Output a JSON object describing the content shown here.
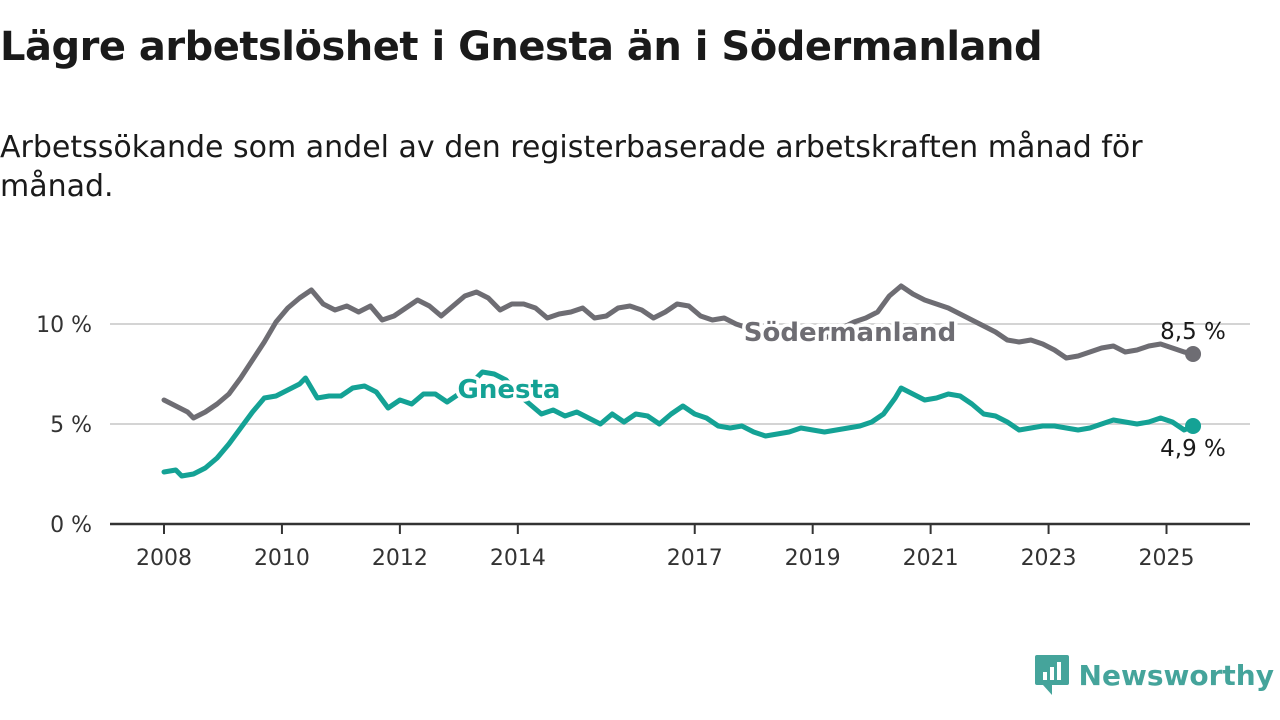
{
  "title": "Lägre arbetslöshet i Gnesta än i Södermanland",
  "subtitle": "Arbetssökande som andel av den registerbaserade arbetskraften månad för månad.",
  "brand": {
    "name": "Newsworthy",
    "icon": "newsworthy-logo-icon",
    "color": "#45a49b"
  },
  "colors": {
    "gnesta": "#14a295",
    "sodermanland": "#6e6d73",
    "grid": "#d4d4d4",
    "axis": "#333333"
  },
  "chart_data": {
    "type": "line",
    "title": "Lägre arbetslöshet i Gnesta än i Södermanland",
    "subtitle": "Arbetssökande som andel av den registerbaserade arbetskraften månad för månad.",
    "x_tick_labels": [
      "2008",
      "2010",
      "2012",
      "2014",
      "2017",
      "2019",
      "2021",
      "2023",
      "2025"
    ],
    "x_tick_values": [
      2008,
      2010,
      2012,
      2014,
      2017,
      2019,
      2021,
      2023,
      2025
    ],
    "xlim": [
      2008,
      2025.5
    ],
    "y_ticks": [
      0,
      5,
      10
    ],
    "y_tick_labels": [
      "0 %",
      "5 %",
      "10 %"
    ],
    "ylim": [
      0,
      12
    ],
    "grid": true,
    "series": [
      {
        "name": "Södermanland",
        "color": "#6e6d73",
        "end_label": "8,5 %",
        "points": [
          [
            2008.0,
            6.2
          ],
          [
            2008.2,
            5.9
          ],
          [
            2008.4,
            5.6
          ],
          [
            2008.5,
            5.3
          ],
          [
            2008.7,
            5.6
          ],
          [
            2008.9,
            6.0
          ],
          [
            2009.1,
            6.5
          ],
          [
            2009.3,
            7.3
          ],
          [
            2009.5,
            8.2
          ],
          [
            2009.7,
            9.1
          ],
          [
            2009.9,
            10.1
          ],
          [
            2010.1,
            10.8
          ],
          [
            2010.3,
            11.3
          ],
          [
            2010.5,
            11.7
          ],
          [
            2010.7,
            11.0
          ],
          [
            2010.9,
            10.7
          ],
          [
            2011.1,
            10.9
          ],
          [
            2011.3,
            10.6
          ],
          [
            2011.5,
            10.9
          ],
          [
            2011.7,
            10.2
          ],
          [
            2011.9,
            10.4
          ],
          [
            2012.1,
            10.8
          ],
          [
            2012.3,
            11.2
          ],
          [
            2012.5,
            10.9
          ],
          [
            2012.7,
            10.4
          ],
          [
            2012.9,
            10.9
          ],
          [
            2013.1,
            11.4
          ],
          [
            2013.3,
            11.6
          ],
          [
            2013.5,
            11.3
          ],
          [
            2013.7,
            10.7
          ],
          [
            2013.9,
            11.0
          ],
          [
            2014.1,
            11.0
          ],
          [
            2014.3,
            10.8
          ],
          [
            2014.5,
            10.3
          ],
          [
            2014.7,
            10.5
          ],
          [
            2014.9,
            10.6
          ],
          [
            2015.1,
            10.8
          ],
          [
            2015.3,
            10.3
          ],
          [
            2015.5,
            10.4
          ],
          [
            2015.7,
            10.8
          ],
          [
            2015.9,
            10.9
          ],
          [
            2016.1,
            10.7
          ],
          [
            2016.3,
            10.3
          ],
          [
            2016.5,
            10.6
          ],
          [
            2016.7,
            11.0
          ],
          [
            2016.9,
            10.9
          ],
          [
            2017.1,
            10.4
          ],
          [
            2017.3,
            10.2
          ],
          [
            2017.5,
            10.3
          ],
          [
            2017.7,
            10.0
          ],
          [
            2017.9,
            9.8
          ],
          [
            2018.1,
            9.6
          ],
          [
            2018.3,
            9.7
          ],
          [
            2018.5,
            9.5
          ],
          [
            2018.7,
            9.3
          ],
          [
            2018.9,
            9.4
          ],
          [
            2019.1,
            9.2
          ],
          [
            2019.3,
            9.4
          ],
          [
            2019.5,
            9.8
          ],
          [
            2019.7,
            10.1
          ],
          [
            2019.9,
            10.3
          ],
          [
            2020.1,
            10.6
          ],
          [
            2020.3,
            11.4
          ],
          [
            2020.5,
            11.9
          ],
          [
            2020.7,
            11.5
          ],
          [
            2020.9,
            11.2
          ],
          [
            2021.1,
            11.0
          ],
          [
            2021.3,
            10.8
          ],
          [
            2021.5,
            10.5
          ],
          [
            2021.7,
            10.2
          ],
          [
            2021.9,
            9.9
          ],
          [
            2022.1,
            9.6
          ],
          [
            2022.3,
            9.2
          ],
          [
            2022.5,
            9.1
          ],
          [
            2022.7,
            9.2
          ],
          [
            2022.9,
            9.0
          ],
          [
            2023.1,
            8.7
          ],
          [
            2023.3,
            8.3
          ],
          [
            2023.5,
            8.4
          ],
          [
            2023.7,
            8.6
          ],
          [
            2023.9,
            8.8
          ],
          [
            2024.1,
            8.9
          ],
          [
            2024.3,
            8.6
          ],
          [
            2024.5,
            8.7
          ],
          [
            2024.7,
            8.9
          ],
          [
            2024.9,
            9.0
          ],
          [
            2025.1,
            8.8
          ],
          [
            2025.3,
            8.6
          ],
          [
            2025.45,
            8.5
          ]
        ]
      },
      {
        "name": "Gnesta",
        "color": "#14a295",
        "end_label": "4,9 %",
        "points": [
          [
            2008.0,
            2.6
          ],
          [
            2008.2,
            2.7
          ],
          [
            2008.3,
            2.4
          ],
          [
            2008.5,
            2.5
          ],
          [
            2008.7,
            2.8
          ],
          [
            2008.9,
            3.3
          ],
          [
            2009.1,
            4.0
          ],
          [
            2009.3,
            4.8
          ],
          [
            2009.5,
            5.6
          ],
          [
            2009.7,
            6.3
          ],
          [
            2009.9,
            6.4
          ],
          [
            2010.1,
            6.7
          ],
          [
            2010.3,
            7.0
          ],
          [
            2010.4,
            7.3
          ],
          [
            2010.6,
            6.3
          ],
          [
            2010.8,
            6.4
          ],
          [
            2011.0,
            6.4
          ],
          [
            2011.2,
            6.8
          ],
          [
            2011.4,
            6.9
          ],
          [
            2011.6,
            6.6
          ],
          [
            2011.8,
            5.8
          ],
          [
            2012.0,
            6.2
          ],
          [
            2012.2,
            6.0
          ],
          [
            2012.4,
            6.5
          ],
          [
            2012.6,
            6.5
          ],
          [
            2012.8,
            6.1
          ],
          [
            2013.0,
            6.5
          ],
          [
            2013.2,
            7.0
          ],
          [
            2013.4,
            7.6
          ],
          [
            2013.6,
            7.5
          ],
          [
            2013.8,
            7.2
          ],
          [
            2014.0,
            6.5
          ],
          [
            2014.2,
            6.0
          ],
          [
            2014.4,
            5.5
          ],
          [
            2014.6,
            5.7
          ],
          [
            2014.8,
            5.4
          ],
          [
            2015.0,
            5.6
          ],
          [
            2015.2,
            5.3
          ],
          [
            2015.4,
            5.0
          ],
          [
            2015.6,
            5.5
          ],
          [
            2015.8,
            5.1
          ],
          [
            2016.0,
            5.5
          ],
          [
            2016.2,
            5.4
          ],
          [
            2016.4,
            5.0
          ],
          [
            2016.6,
            5.5
          ],
          [
            2016.8,
            5.9
          ],
          [
            2017.0,
            5.5
          ],
          [
            2017.2,
            5.3
          ],
          [
            2017.4,
            4.9
          ],
          [
            2017.6,
            4.8
          ],
          [
            2017.8,
            4.9
          ],
          [
            2018.0,
            4.6
          ],
          [
            2018.2,
            4.4
          ],
          [
            2018.4,
            4.5
          ],
          [
            2018.6,
            4.6
          ],
          [
            2018.8,
            4.8
          ],
          [
            2019.0,
            4.7
          ],
          [
            2019.2,
            4.6
          ],
          [
            2019.4,
            4.7
          ],
          [
            2019.6,
            4.8
          ],
          [
            2019.8,
            4.9
          ],
          [
            2020.0,
            5.1
          ],
          [
            2020.2,
            5.5
          ],
          [
            2020.4,
            6.3
          ],
          [
            2020.5,
            6.8
          ],
          [
            2020.7,
            6.5
          ],
          [
            2020.9,
            6.2
          ],
          [
            2021.1,
            6.3
          ],
          [
            2021.3,
            6.5
          ],
          [
            2021.5,
            6.4
          ],
          [
            2021.7,
            6.0
          ],
          [
            2021.9,
            5.5
          ],
          [
            2022.1,
            5.4
          ],
          [
            2022.3,
            5.1
          ],
          [
            2022.5,
            4.7
          ],
          [
            2022.7,
            4.8
          ],
          [
            2022.9,
            4.9
          ],
          [
            2023.1,
            4.9
          ],
          [
            2023.3,
            4.8
          ],
          [
            2023.5,
            4.7
          ],
          [
            2023.7,
            4.8
          ],
          [
            2023.9,
            5.0
          ],
          [
            2024.1,
            5.2
          ],
          [
            2024.3,
            5.1
          ],
          [
            2024.5,
            5.0
          ],
          [
            2024.7,
            5.1
          ],
          [
            2024.9,
            5.3
          ],
          [
            2025.1,
            5.1
          ],
          [
            2025.3,
            4.7
          ],
          [
            2025.45,
            4.9
          ]
        ]
      }
    ]
  }
}
